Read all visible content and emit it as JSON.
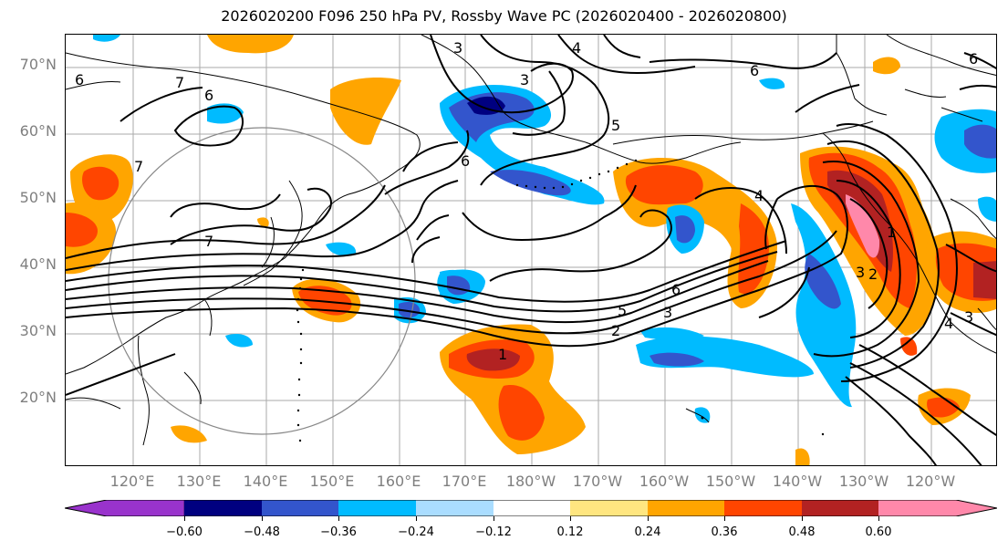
{
  "title": "2026020200 F096 250 hPa PV, Rossby Wave PC (2026020400 - 2026020800)",
  "lat_labels": [
    "70°N",
    "60°N",
    "50°N",
    "40°N",
    "30°N",
    "20°N"
  ],
  "lon_labels": [
    "120°E",
    "130°E",
    "140°E",
    "150°E",
    "160°E",
    "170°E",
    "180°W",
    "170°W",
    "160°W",
    "150°W",
    "140°W",
    "130°W",
    "120°W"
  ],
  "contour_labels": [
    "1",
    "2",
    "3",
    "4",
    "5",
    "6",
    "7"
  ],
  "colorbar": {
    "ticks": [
      "−0.60",
      "−0.48",
      "−0.36",
      "−0.24",
      "−0.12",
      "0.12",
      "0.24",
      "0.36",
      "0.48",
      "0.60"
    ],
    "colors": [
      "#9933cc",
      "#000080",
      "#3355cc",
      "#00bbff",
      "#aaddff",
      "#ffffff",
      "#ffe680",
      "#ffa500",
      "#ff4500",
      "#b22222",
      "#ff88aa"
    ]
  }
}
